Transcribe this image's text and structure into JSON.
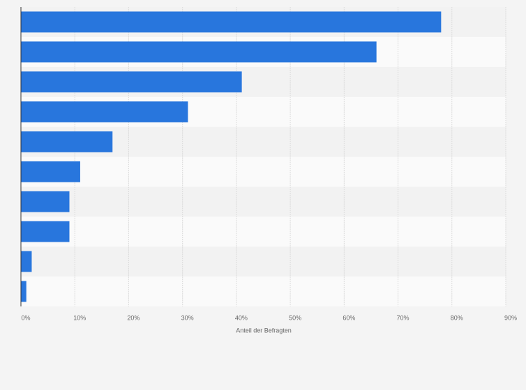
{
  "chart_data": {
    "type": "bar",
    "orientation": "horizontal",
    "x_label": "Anteil der Befragten",
    "categories": [
      null,
      null,
      null,
      null,
      null,
      null,
      null,
      null,
      null,
      null
    ],
    "values": [
      78,
      66,
      41,
      31,
      17,
      11,
      9,
      9,
      2,
      1
    ],
    "color": "#2876dd",
    "xlim": [
      0,
      90
    ],
    "xticks": [
      {
        "value": 0,
        "label": "0%"
      },
      {
        "value": 10,
        "label": "10%"
      },
      {
        "value": 20,
        "label": "20%"
      },
      {
        "value": 30,
        "label": "30%"
      },
      {
        "value": 40,
        "label": "40%"
      },
      {
        "value": 50,
        "label": "50%"
      },
      {
        "value": 60,
        "label": "60%"
      },
      {
        "value": 70,
        "label": "70%"
      },
      {
        "value": 80,
        "label": "80%"
      },
      {
        "value": 90,
        "label": "90%"
      }
    ],
    "grid": true
  }
}
